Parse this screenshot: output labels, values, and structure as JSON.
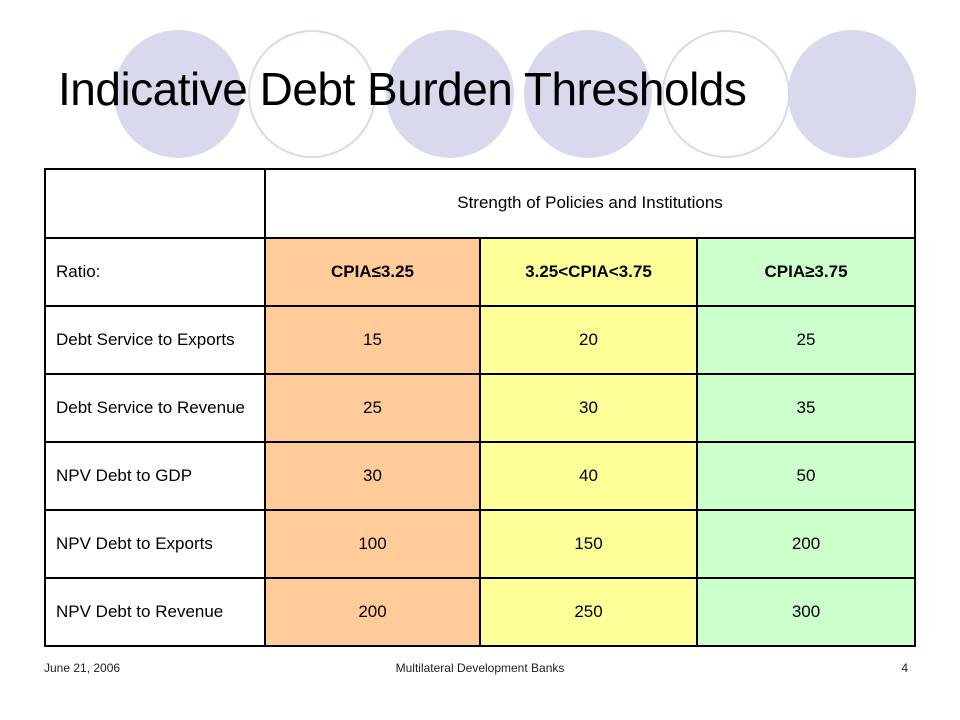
{
  "slide": {
    "title": "Indicative Debt Burden Thresholds"
  },
  "table": {
    "span_header": "Strength of Policies and Institutions",
    "columns": [
      "Ratio:",
      "CPIA≤3.25",
      "3.25<CPIA<3.75",
      "CPIA≥3.75"
    ],
    "rows": [
      {
        "label": "Debt Service to Exports",
        "values": [
          "15",
          "20",
          "25"
        ]
      },
      {
        "label": "Debt Service to Revenue",
        "values": [
          "25",
          "30",
          "35"
        ]
      },
      {
        "label": "NPV Debt to GDP",
        "values": [
          "30",
          "40",
          "50"
        ]
      },
      {
        "label": "NPV Debt to Exports",
        "values": [
          "100",
          "150",
          "200"
        ]
      },
      {
        "label": "NPV Debt to Revenue",
        "values": [
          "200",
          "250",
          "300"
        ]
      }
    ],
    "colors": {
      "low": "#ffcc99",
      "mid": "#ffff99",
      "high": "#ccffcc"
    }
  },
  "footer": {
    "date": "June 21, 2006",
    "center": "Multilateral Development Banks",
    "page": "4"
  }
}
